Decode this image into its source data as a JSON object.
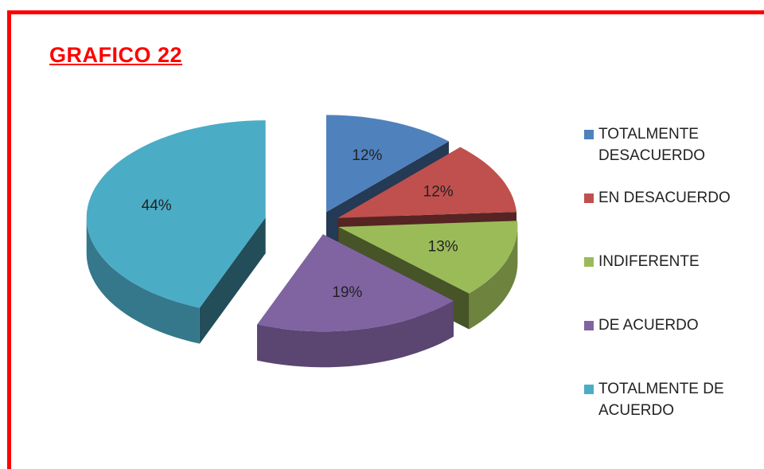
{
  "chart_data": {
    "type": "pie3d",
    "title": "GRAFICO 22",
    "categories": [
      "TOTALMENTE DESACUERDO",
      "EN DESACUERDO",
      "INDIFERENTE",
      "DE ACUERDO",
      "TOTALMENTE DE ACUERDO"
    ],
    "values": [
      12,
      12,
      13,
      19,
      44
    ],
    "value_labels": [
      "12%",
      "12%",
      "13%",
      "19%",
      "44%"
    ],
    "colors": [
      "#4f81bd",
      "#c0504d",
      "#9bbb59",
      "#8064a2",
      "#4bacc6"
    ],
    "legend": "right"
  }
}
